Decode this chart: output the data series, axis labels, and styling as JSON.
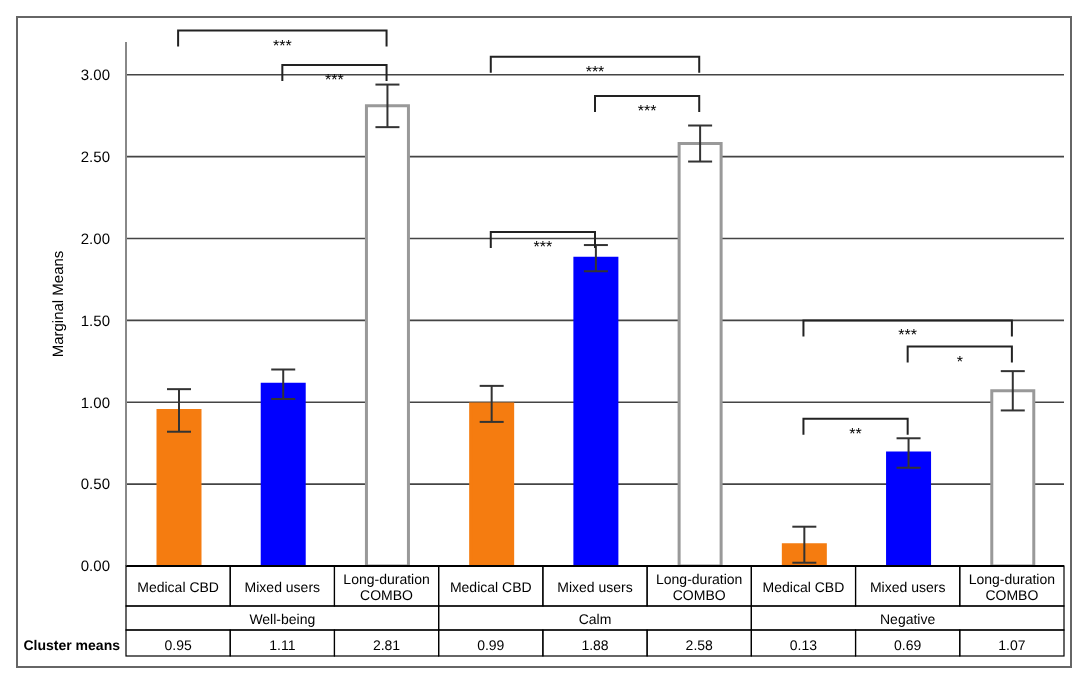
{
  "chart_data": {
    "type": "bar",
    "ylabel": "Marginal Means",
    "categories": [
      "Medical CBD",
      "Mixed users",
      "Long-duration COMBO",
      "Medical CBD",
      "Mixed users",
      "Long-duration COMBO",
      "Medical CBD",
      "Mixed users",
      "Long-duration COMBO"
    ],
    "values": [
      0.95,
      1.11,
      2.81,
      0.99,
      1.88,
      2.58,
      0.13,
      0.69,
      1.07
    ],
    "errors": [
      0.13,
      0.09,
      0.13,
      0.11,
      0.08,
      0.11,
      0.11,
      0.09,
      0.12
    ],
    "colors": [
      "#f57c10",
      "#0000ff",
      "#ffffff",
      "#f57c10",
      "#0000ff",
      "#ffffff",
      "#f57c10",
      "#0000ff",
      "#ffffff"
    ],
    "data_labels": true,
    "ylim": [
      0,
      3.2
    ],
    "yticks": [
      {
        "value": 0,
        "label": "0.00"
      },
      {
        "value": 0.5,
        "label": "0.50"
      },
      {
        "value": 1,
        "label": "1.00"
      },
      {
        "value": 1.5,
        "label": "1.50"
      },
      {
        "value": 2,
        "label": "2.00"
      },
      {
        "value": 2.5,
        "label": "2.50"
      },
      {
        "value": 3,
        "label": "3.00"
      }
    ],
    "grid": "y",
    "annotations": [
      "***",
      "***",
      "***",
      "***",
      "***",
      "***",
      "*",
      "**",
      "Well-being",
      "Calm",
      "Negative",
      "Cluster means"
    ]
  }
}
